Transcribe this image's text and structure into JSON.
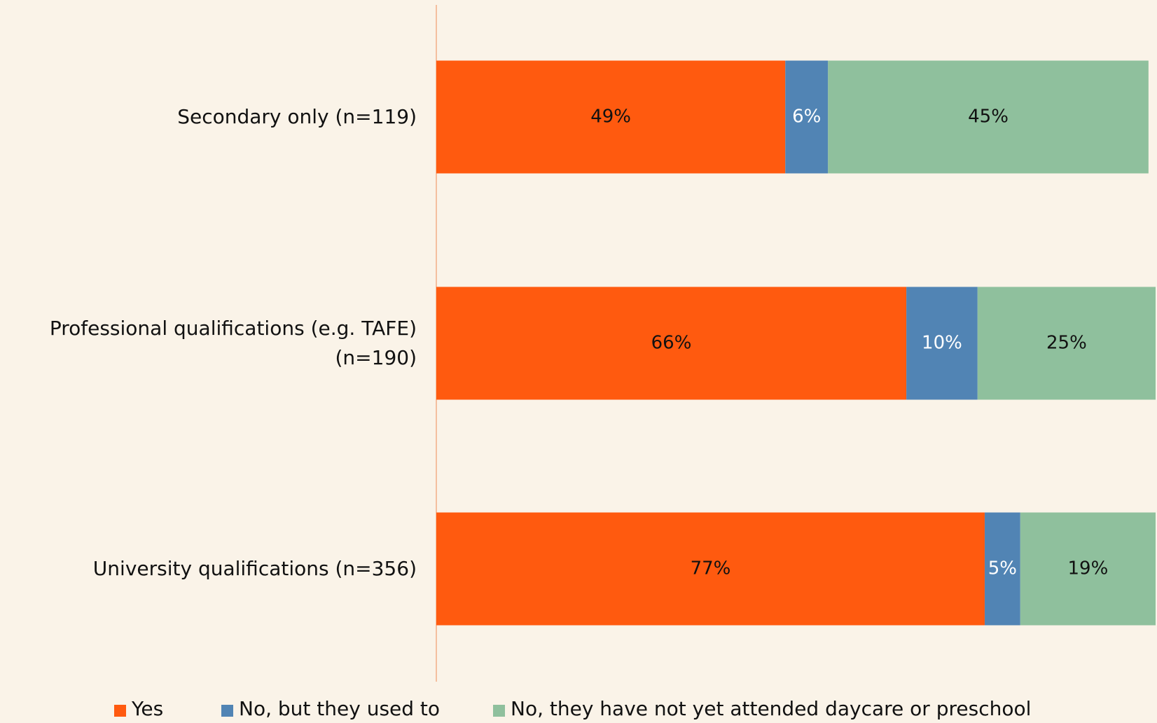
{
  "chart_data": {
    "type": "stacked_barh",
    "categories": [
      "Secondary only (n=119)",
      "Professional qualifications (e.g. TAFE) (n=190)",
      "University qualifications (n=356)"
    ],
    "series": [
      {
        "name": "Yes",
        "color": "#ff5a0f",
        "label_color": "#111111",
        "values": [
          49,
          66,
          77
        ],
        "value_labels": [
          "49%",
          "66%",
          "77%"
        ]
      },
      {
        "name": "No, but they used to",
        "color": "#5184b4",
        "label_color": "#ffffff",
        "values": [
          6,
          10,
          5
        ],
        "value_labels": [
          "6%",
          "10%",
          "5%"
        ]
      },
      {
        "name": "No, they have not yet attended daycare or preschool",
        "color": "#8fc09d",
        "label_color": "#111111",
        "values": [
          45,
          25,
          19
        ],
        "value_labels": [
          "45%",
          "25%",
          "19%"
        ]
      }
    ],
    "legend": "bottom"
  }
}
